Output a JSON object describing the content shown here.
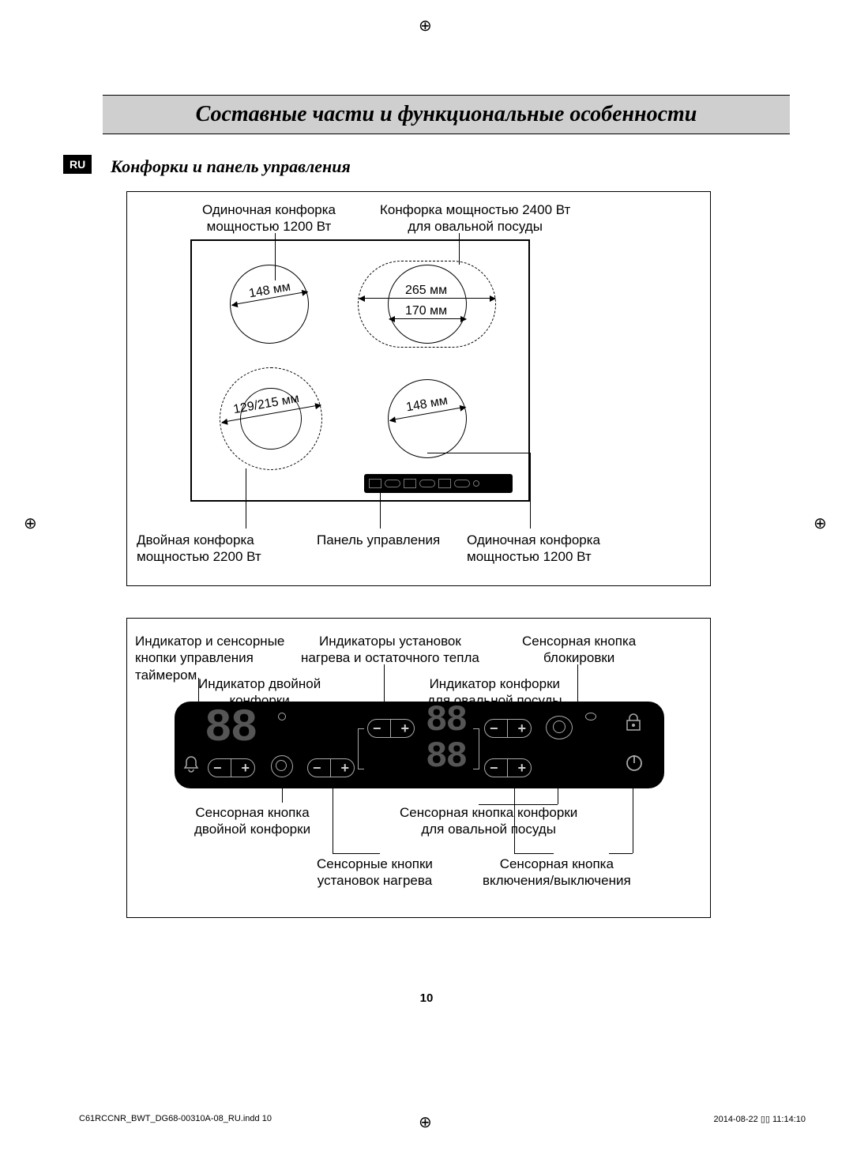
{
  "registration_mark": "⊕",
  "title": "Составные части и функциональные особенности",
  "lang_badge": "RU",
  "subheading": "Конфорки и панель управления",
  "page_number": "10",
  "footer_left": "C61RCCNR_BWT_DG68-00310A-08_RU.indd   10",
  "footer_right": "2014-08-22   ▯▯ 11:14:10",
  "fig1": {
    "labels": {
      "top_left": "Одиночная конфорка\nмощностью 1200 Вт",
      "top_right": "Конфорка мощностью 2400 Вт\nдля овальной посуды",
      "bottom_left": "Двойная конфорка\nмощностью 2200 Вт",
      "bottom_center": "Панель управления",
      "bottom_right": "Одиночная конфорка\nмощностью 1200 Вт"
    },
    "dimensions": {
      "tl": "148 мм",
      "tr1": "265 мм",
      "tr2": "170 мм",
      "bl": "129/215 мм",
      "br": "148 мм"
    },
    "hob": {
      "burner_tl_d": 100,
      "burner_tr_d": 100,
      "burner_tr_oval_w": 175,
      "burner_tr_oval_h": 110,
      "burner_bl_outer_d": 130,
      "burner_bl_inner_d": 78,
      "burner_br_d": 100
    }
  },
  "fig2": {
    "labels": {
      "timer": "Индикатор и сенсорные\nкнопки управления\nтаймером",
      "heat_ind": "Индикаторы установок\nнагрева и остаточного тепла",
      "lock": "Сенсорная кнопка\nблокировки",
      "dual_ind": "Индикатор двойной\nконфорки",
      "oval_ind": "Индикатор конфорки\nдля овальной посуды",
      "dual_btn": "Сенсорная кнопка\nдвойной конфорки",
      "oval_btn": "Сенсорная кнопка конфорки\nдля овальной посуды",
      "heat_btns": "Сенсорные кнопки\nустановок нагрева",
      "power": "Сенсорная кнопка\nвключения/выключения"
    },
    "panel": {
      "seg_placeholder": "88",
      "minus": "−",
      "plus": "+"
    }
  },
  "colors": {
    "title_bg": "#cfcfcf",
    "page_bg": "#ffffff",
    "black": "#000000",
    "panel_fg": "#aaaaaa",
    "seg_dim": "#555555"
  }
}
